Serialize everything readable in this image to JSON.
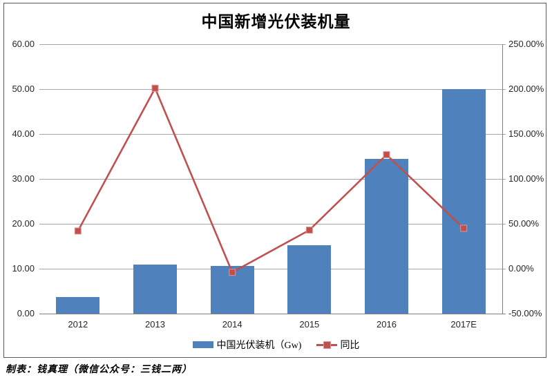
{
  "title": "中国新增光伏装机量",
  "source_note": "制表：钱真理（微信公众号：三钱二两）",
  "colors": {
    "bar": "#4F81BD",
    "line": "#C0504D",
    "marker_edge": "#D99694",
    "gridline": "#A6A6A6",
    "axis": "#7F7F7F",
    "frame_border": "#595959"
  },
  "chart_data": {
    "type": "bar",
    "subtype": "bar+line combo, dual y-axes",
    "title": "中国新增光伏装机量",
    "categories": [
      "2012",
      "2013",
      "2014",
      "2015",
      "2016",
      "2017E"
    ],
    "series": [
      {
        "name": "中国光伏装机（Gw)",
        "type": "bar",
        "axis": "left",
        "values": [
          3.7,
          11.0,
          10.6,
          15.2,
          34.5,
          50.0
        ]
      },
      {
        "name": "同比",
        "type": "line",
        "axis": "right",
        "values": [
          42,
          201,
          -4,
          43,
          127,
          45
        ],
        "unit": "%"
      }
    ],
    "y_left_axis": {
      "min": 0,
      "max": 60,
      "step": 10,
      "tick_labels_bottom_to_top": [
        "0.00",
        "10.00",
        "20.00",
        "30.00",
        "40.00",
        "50.00",
        "60.00"
      ]
    },
    "y_right_axis": {
      "min": -50,
      "max": 250,
      "step": 50,
      "tick_labels_bottom_to_top": [
        "-50.00%",
        "0.00%",
        "50.00%",
        "100.00%",
        "150.00%",
        "200.00%",
        "250.00%"
      ]
    },
    "grid": true,
    "legend_position": "bottom"
  }
}
